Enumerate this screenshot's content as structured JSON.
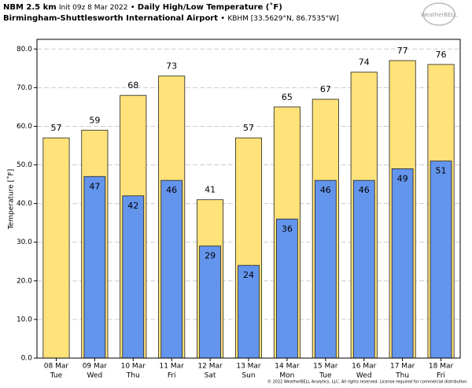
{
  "header": {
    "model": "NBM 2.5 km",
    "init": "Init 09z 8 Mar 2022",
    "sep1": "•",
    "product": "Daily High/Low Temperature (˚F)",
    "station": "Birmingham-Shuttlesworth International Airport",
    "sep2": "•",
    "coords": "KBHM [33.5629°N, 86.7535°W]",
    "logo": "WeatherBELL"
  },
  "footer": "© 2022 WeatherBELL Analytics, LLC. All rights reserved. License required for commercial distribution.",
  "chart_data": {
    "type": "bar",
    "y_label": "Temperature [˚F]",
    "categories": [
      "08 Mar",
      "09 Mar",
      "10 Mar",
      "11 Mar",
      "12 Mar",
      "13 Mar",
      "14 Mar",
      "15 Mar",
      "16 Mar",
      "17 Mar",
      "18 Mar"
    ],
    "weekdays": [
      "Tue",
      "Wed",
      "Thu",
      "Fri",
      "Sat",
      "Sun",
      "Mon",
      "Tue",
      "Wed",
      "Thu",
      "Fri"
    ],
    "series": [
      {
        "name": "High",
        "color": "#ffe27a",
        "values": [
          57,
          59,
          68,
          73,
          41,
          57,
          65,
          67,
          74,
          77,
          76
        ]
      },
      {
        "name": "Low",
        "color": "#6495ed",
        "values": [
          null,
          47,
          42,
          46,
          29,
          24,
          36,
          46,
          46,
          49,
          51
        ]
      }
    ],
    "ylim": [
      0,
      82.5
    ],
    "yticks": [
      {
        "value": 0,
        "label": "0.0"
      },
      {
        "value": 10,
        "label": "10.0"
      },
      {
        "value": 20,
        "label": "20.0"
      },
      {
        "value": 30,
        "label": "30.0"
      },
      {
        "value": 40,
        "label": "40.0"
      },
      {
        "value": 50,
        "label": "50.0"
      },
      {
        "value": 60,
        "label": "60.0"
      },
      {
        "value": 70,
        "label": "70.0"
      },
      {
        "value": 80,
        "label": "80.0"
      }
    ],
    "grid": true
  }
}
